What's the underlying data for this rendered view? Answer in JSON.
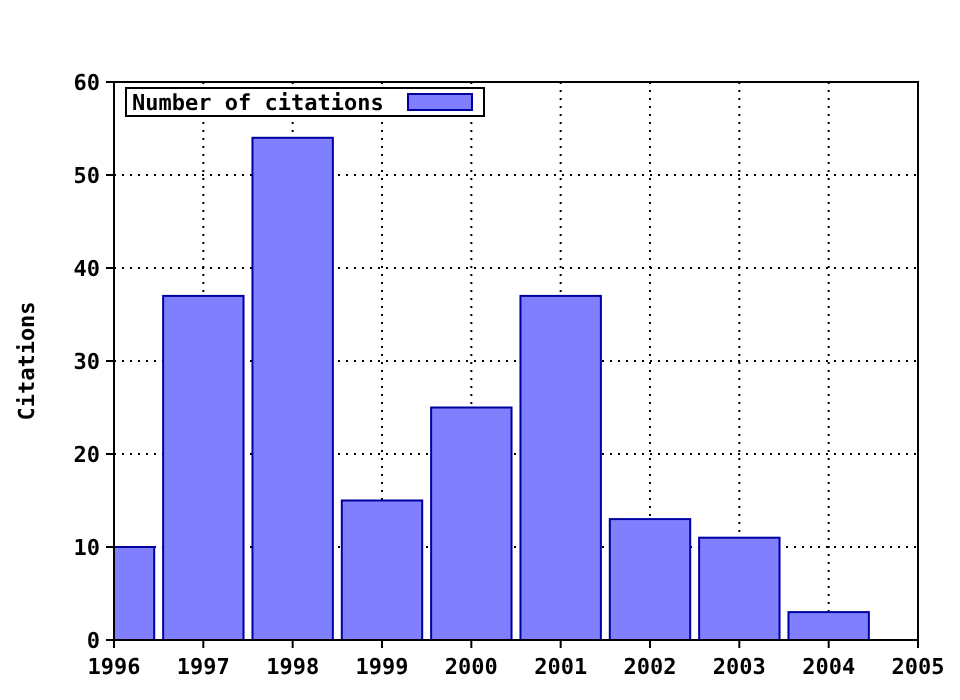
{
  "chart_data": {
    "type": "bar",
    "ylabel": "Citations",
    "x": [
      1996,
      1997,
      1998,
      1999,
      2000,
      2001,
      2002,
      2003,
      2004
    ],
    "series": [
      {
        "name": "Number of citations",
        "color": "#8080ff",
        "values": [
          10,
          37,
          54,
          15,
          25,
          37,
          13,
          11,
          3
        ]
      }
    ],
    "xlim": [
      1996,
      2005
    ],
    "xticks": [
      1996,
      1997,
      1998,
      1999,
      2000,
      2001,
      2002,
      2003,
      2004,
      2005
    ],
    "ylim": [
      0,
      60
    ],
    "yticks": [
      0,
      10,
      20,
      30,
      40,
      50,
      60
    ],
    "grid": true,
    "legend": "top left"
  }
}
